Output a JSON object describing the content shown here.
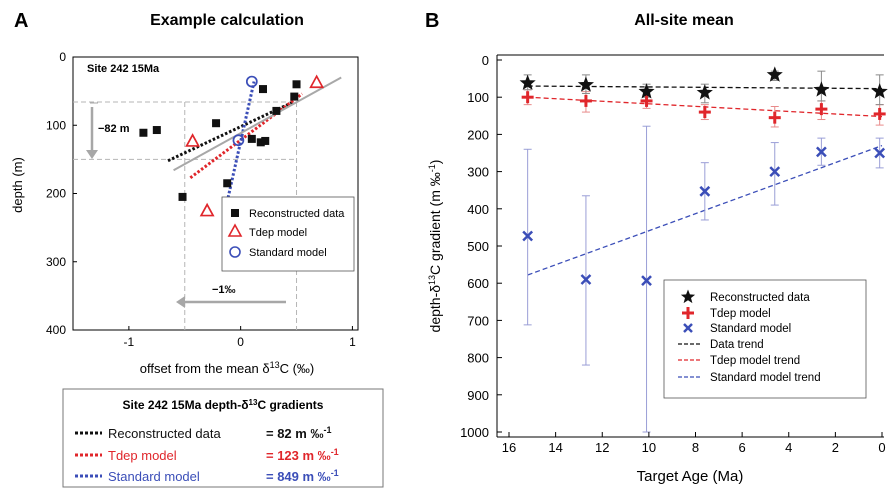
{
  "colors": {
    "data": "#111111",
    "tdep": "#e0262b",
    "standard": "#3b4eb8",
    "ref_line": "#b5b5b5",
    "arrow": "#a7a7a7",
    "errorbar_std": "#9a9ed6",
    "errorbar_tdep": "#e88a8a",
    "errorbar_data": "#8a8a8a"
  },
  "panelA": {
    "letter": "A",
    "title": "Example calculation",
    "site_label": "Site 242 15Ma",
    "depth_annotation": "−82 m",
    "offset_annotation": "−1‰",
    "xlabel_pre": "offset from the mean δ",
    "xlabel_sup": "13",
    "xlabel_post": "C (‰)",
    "ylabel": "depth (m)",
    "legend": [
      "Reconstructed data",
      "Tdep model",
      "Standard model"
    ]
  },
  "panelB": {
    "letter": "B",
    "title": "All-site mean",
    "xlabel": "Target Age (Ma)",
    "ylabel_pre": "depth-δ",
    "ylabel_sup": "13",
    "ylabel_post": "C gradient (m ‰",
    "ylabel_sup2": "-1",
    "ylabel_end": ")",
    "legend": [
      "Reconstructed data",
      "Tdep model",
      "Standard model",
      "Data trend",
      "Tdep model trend",
      "Standard model trend"
    ]
  },
  "gradients_box": {
    "title_pre": "Site 242 15Ma depth-δ",
    "title_sup": "13",
    "title_post": "C gradients",
    "rows": [
      {
        "label": "Reconstructed data",
        "value": "= 82 m ‰",
        "sup": "-1"
      },
      {
        "label": "Tdep model",
        "value": "= 123 m ‰",
        "sup": "-1"
      },
      {
        "label": "Standard model",
        "value": "= 849 m ‰",
        "sup": "-1"
      }
    ]
  },
  "chart_data": [
    {
      "type": "scatter",
      "title": "Example calculation",
      "xlabel": "offset from the mean δ13C (‰)",
      "ylabel": "depth (m)",
      "xlim": [
        -1.5,
        1.05
      ],
      "ylim": [
        400,
        0
      ],
      "x_ticks": [
        -1,
        0,
        1
      ],
      "y_ticks": [
        0,
        100,
        200,
        300,
        400
      ],
      "grid": false,
      "legend_position": "right",
      "series": [
        {
          "name": "Reconstructed data",
          "marker": "square",
          "points": [
            [
              -0.87,
              111
            ],
            [
              -0.75,
              107
            ],
            [
              -0.22,
              97
            ],
            [
              -0.52,
              205
            ],
            [
              -0.12,
              185
            ],
            [
              0.1,
              120
            ],
            [
              0.18,
              125
            ],
            [
              0.22,
              123
            ],
            [
              0.32,
              79
            ],
            [
              0.48,
              58
            ],
            [
              0.5,
              40
            ],
            [
              0.2,
              47
            ]
          ]
        },
        {
          "name": "Tdep model",
          "marker": "triangle",
          "points": [
            [
              -0.43,
              123
            ],
            [
              -0.3,
              225
            ],
            [
              0.68,
              37
            ]
          ]
        },
        {
          "name": "Standard model",
          "marker": "circle",
          "points": [
            [
              -0.1,
              221
            ],
            [
              -0.02,
              122
            ],
            [
              0.1,
              36
            ]
          ]
        }
      ],
      "trend_lines": [
        {
          "name": "Reconstructed data",
          "style": "dotted",
          "from": [
            -0.65,
            152
          ],
          "to": [
            0.47,
            66
          ]
        },
        {
          "name": "Tdep model",
          "style": "dotted",
          "from": [
            -0.45,
            177
          ],
          "to": [
            0.55,
            54
          ]
        },
        {
          "name": "Standard model",
          "style": "dotted",
          "from": [
            -0.13,
            219
          ],
          "to": [
            0.12,
            36
          ]
        },
        {
          "name": "reference",
          "style": "solid",
          "from": [
            -0.6,
            166
          ],
          "to": [
            0.9,
            30
          ]
        }
      ],
      "reference_lines": {
        "depth_dashed": [
          66,
          150
        ],
        "offset_dashed": [
          -0.5,
          0.5
        ]
      }
    },
    {
      "type": "scatter",
      "title": "All-site mean",
      "xlabel": "Target Age (Ma)",
      "ylabel": "depth-δ13C gradient (m ‰-1)",
      "xlim": [
        16,
        0
      ],
      "ylim": [
        1000,
        0
      ],
      "x_ticks": [
        16,
        14,
        12,
        10,
        8,
        6,
        4,
        2,
        0
      ],
      "y_ticks": [
        0,
        100,
        200,
        300,
        400,
        500,
        600,
        700,
        800,
        900,
        1000
      ],
      "grid": false,
      "legend_position": "bottom-right",
      "x": [
        15.2,
        12.7,
        10.1,
        7.6,
        4.6,
        2.6,
        0.1
      ],
      "series": [
        {
          "name": "Reconstructed data",
          "marker": "star",
          "values": [
            62,
            67,
            85,
            88,
            40,
            80,
            85
          ],
          "err_low": [
            40,
            40,
            65,
            65,
            30,
            30,
            40
          ],
          "err_high": [
            80,
            90,
            100,
            115,
            55,
            110,
            120
          ]
        },
        {
          "name": "Tdep model",
          "marker": "plus",
          "values": [
            100,
            110,
            110,
            140,
            155,
            132,
            145
          ],
          "err_low": [
            80,
            85,
            95,
            120,
            125,
            110,
            120
          ],
          "err_high": [
            120,
            140,
            130,
            160,
            180,
            160,
            175
          ]
        },
        {
          "name": "Standard model",
          "marker": "x",
          "values": [
            473,
            590,
            593,
            353,
            300,
            247,
            250
          ],
          "err_low": [
            240,
            365,
            178,
            276,
            222,
            210,
            210
          ],
          "err_high": [
            712,
            820,
            1000,
            430,
            390,
            283,
            290
          ]
        }
      ],
      "trends": [
        {
          "name": "Data trend",
          "style": "dashed",
          "from": [
            15.2,
            70
          ],
          "to": [
            0,
            77
          ]
        },
        {
          "name": "Tdep model trend",
          "style": "dashed",
          "from": [
            15.2,
            100
          ],
          "to": [
            0,
            152
          ]
        },
        {
          "name": "Standard model trend",
          "style": "dashed",
          "from": [
            15.2,
            578
          ],
          "to": [
            0,
            230
          ]
        }
      ]
    }
  ]
}
